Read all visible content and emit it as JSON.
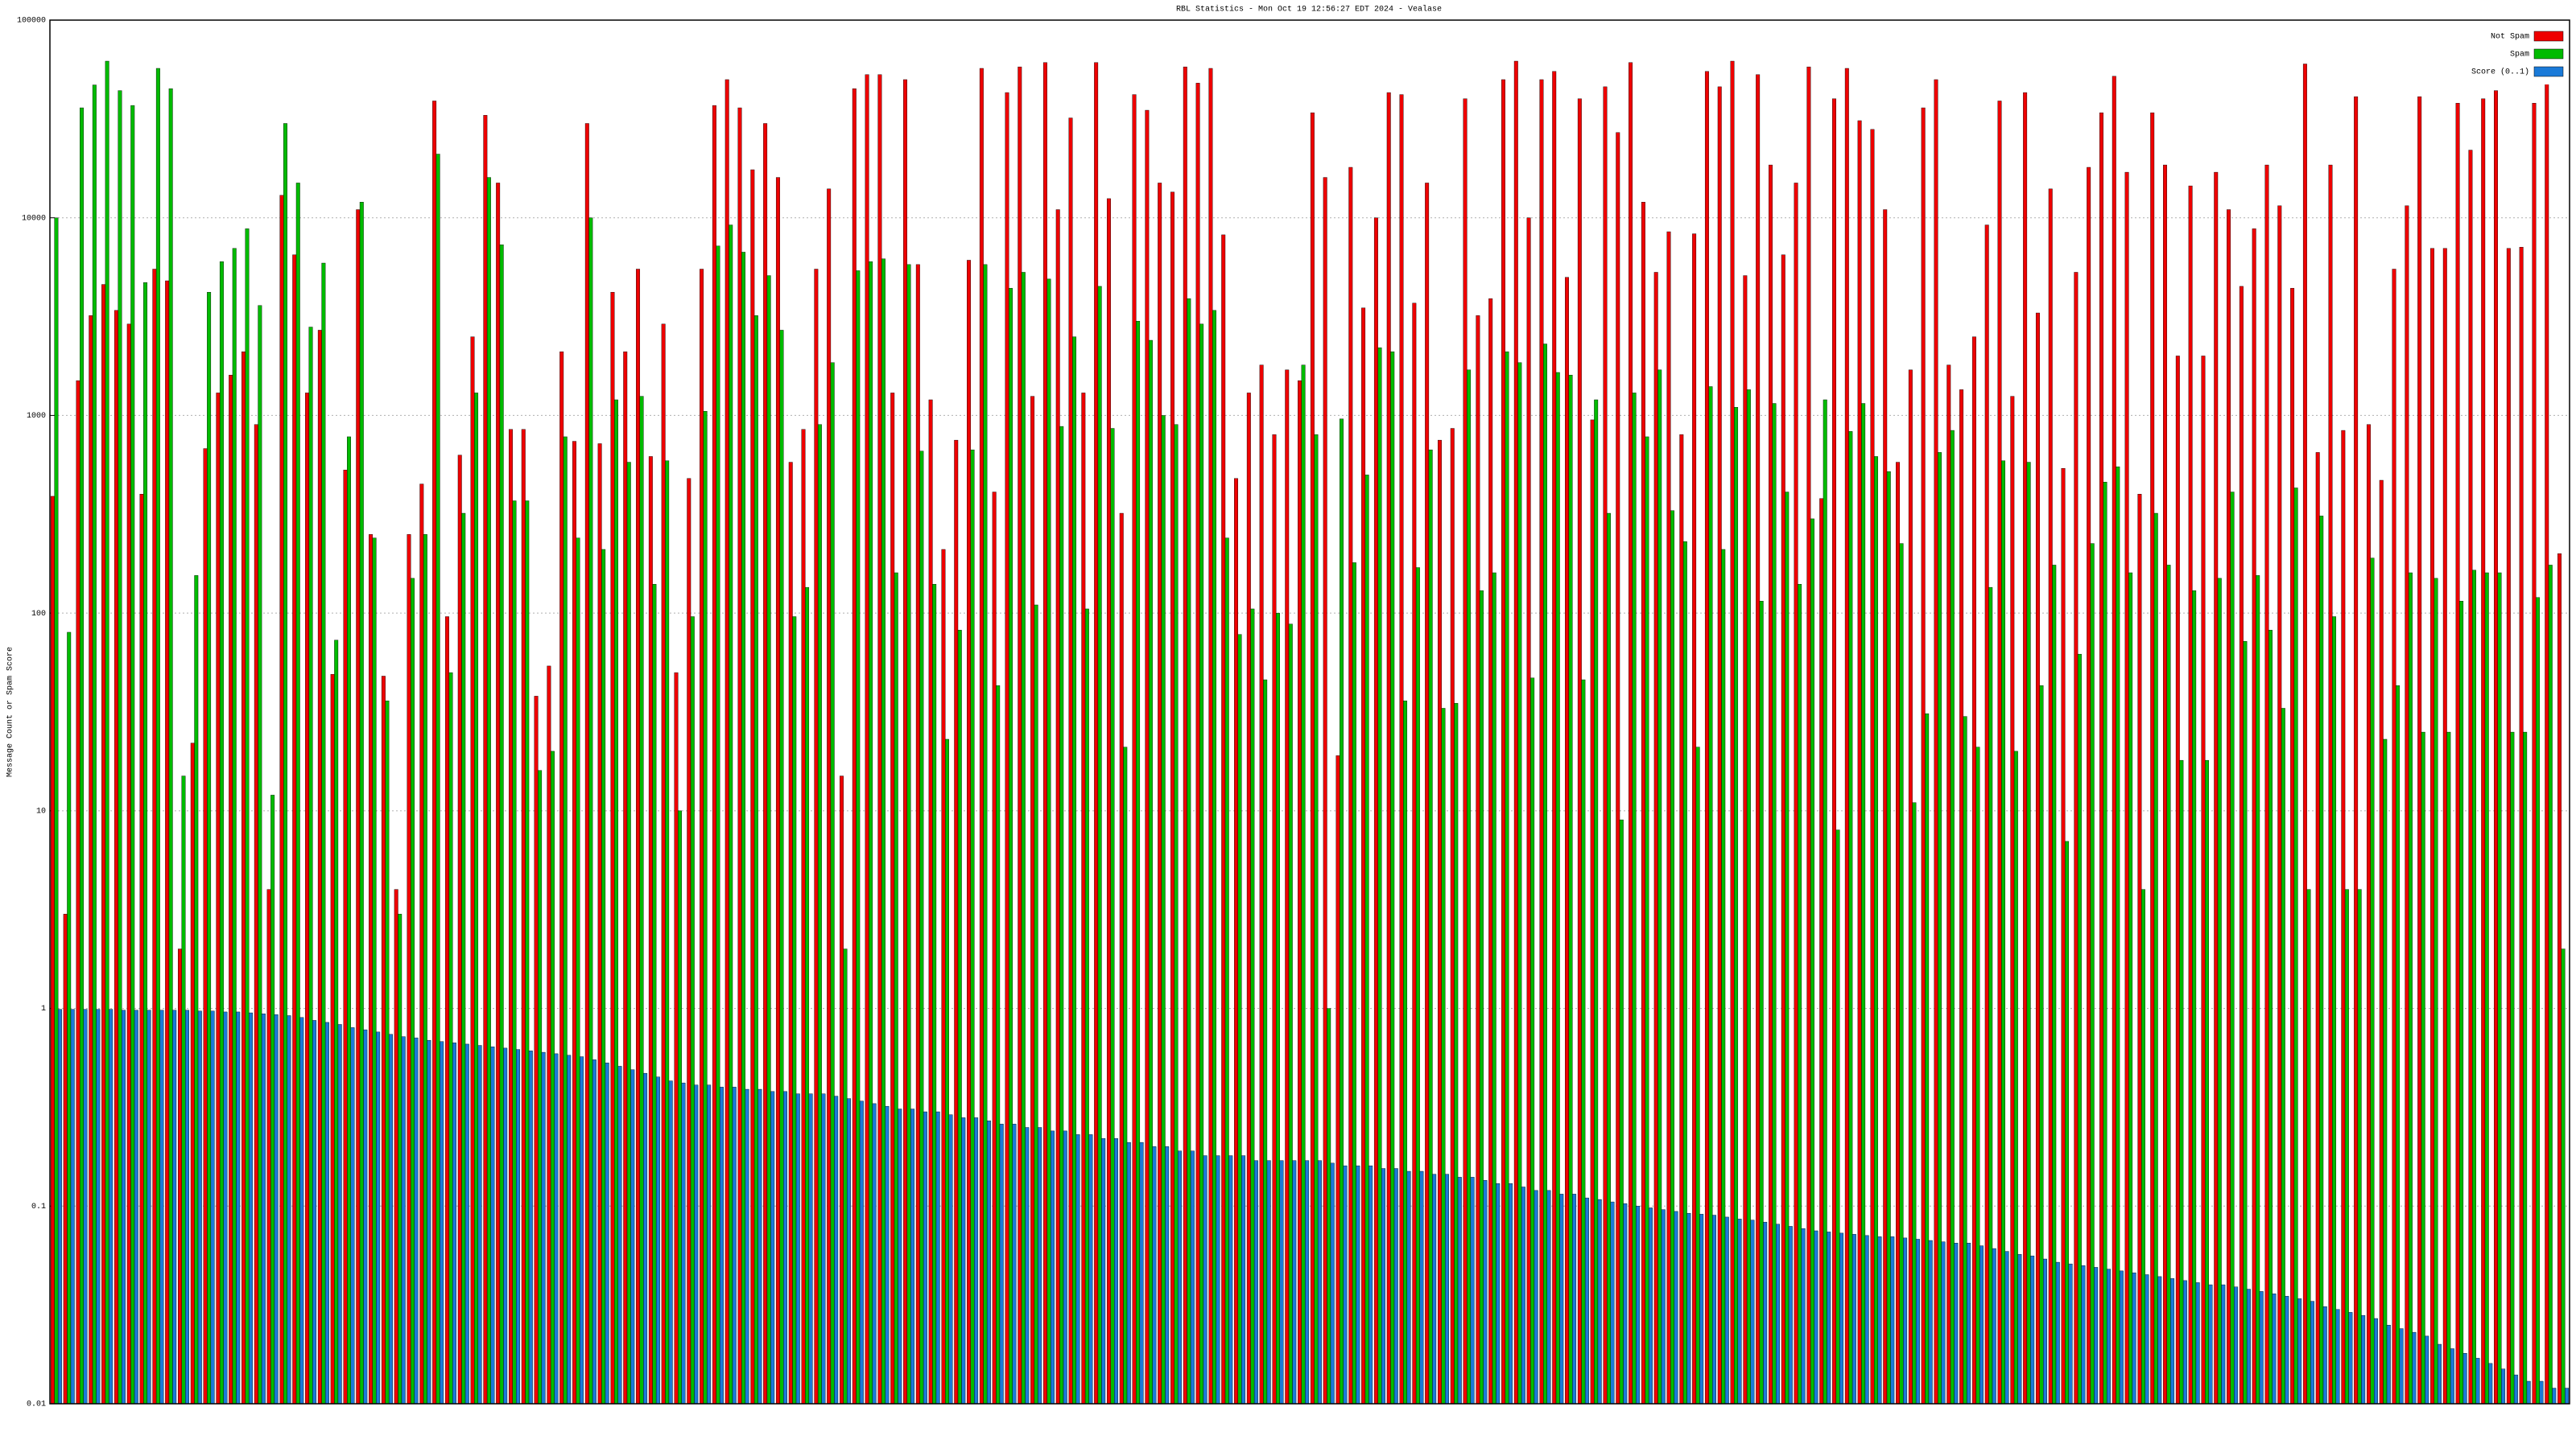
{
  "chart_data": {
    "type": "bar",
    "title": "RBL Statistics - Mon Oct 19 12:56:27 EDT 2024 - Vealase",
    "y_label": "Message Count or Spam Score",
    "log_y": true,
    "grid": true,
    "legend": "upper right",
    "ylim": [
      0.01,
      100000
    ],
    "yticks": [
      0.01,
      0.1,
      1,
      10,
      100,
      1000,
      10000,
      100000
    ],
    "categories": [
      null,
      null,
      null,
      null,
      null,
      null,
      null,
      null,
      null,
      null,
      null,
      null,
      null,
      null,
      null,
      null,
      null,
      null,
      null,
      null,
      null,
      null,
      null,
      null,
      null,
      null,
      null,
      null,
      null,
      null,
      null,
      null,
      null,
      null,
      null,
      null,
      null,
      null,
      null,
      null,
      null,
      null,
      null,
      null,
      null,
      null,
      null,
      null,
      null,
      null,
      null,
      null,
      null,
      null,
      null,
      null,
      null,
      null,
      null,
      null,
      null,
      null,
      null,
      null,
      null,
      null,
      null,
      null,
      null,
      null,
      null,
      null,
      null,
      null,
      null,
      null,
      null,
      null,
      null,
      null,
      null,
      null,
      null,
      null,
      null,
      null,
      null,
      null,
      null,
      null,
      null,
      null,
      null,
      null,
      null,
      null,
      null,
      null,
      null,
      null,
      null,
      null,
      null,
      null,
      null,
      null,
      null,
      null,
      null,
      null,
      null,
      null,
      null,
      null,
      null,
      null,
      null,
      null,
      null,
      null,
      null,
      null,
      null,
      null,
      null,
      null,
      null,
      null,
      null,
      null,
      null,
      null,
      null,
      null,
      null,
      null,
      null,
      null,
      null,
      null,
      null,
      null,
      null,
      null,
      null,
      null,
      null,
      null,
      null,
      null,
      null,
      null,
      null,
      null,
      null,
      null,
      null,
      null,
      null,
      null,
      null,
      null,
      null,
      null,
      null,
      null,
      null,
      null,
      null,
      null,
      null,
      null,
      null,
      null,
      null,
      null,
      null,
      null,
      null,
      null,
      null,
      null,
      null,
      null,
      null,
      null,
      null,
      null,
      null,
      null,
      null,
      null,
      null,
      null,
      null,
      null,
      null,
      null
    ],
    "series": [
      {
        "name": "Not Spam",
        "color": "#ee0000",
        "values": [
          390,
          3,
          1500,
          3200,
          4600,
          3400,
          2900,
          400,
          5500,
          4800,
          2,
          22,
          680,
          1300,
          1600,
          2100,
          900,
          4,
          13000,
          6500,
          1300,
          2700,
          49,
          530,
          11000,
          250,
          48,
          4,
          250,
          450,
          39000,
          96,
          630,
          2500,
          33000,
          15000,
          850,
          850,
          38,
          54,
          2100,
          740,
          30000,
          720,
          4200,
          2100,
          5500,
          620,
          2900,
          50,
          480,
          5500,
          37000,
          50000,
          36000,
          17500,
          30000,
          16000,
          580,
          850,
          5500,
          14000,
          15,
          45000,
          53000,
          53000,
          1300,
          50000,
          5800,
          1200,
          210,
          750,
          6100,
          57000,
          410,
          43000,
          58000,
          1250,
          61000,
          11000,
          32000,
          1300,
          61000,
          12500,
          320,
          42000,
          35000,
          15000,
          13500,
          58000,
          48000,
          57000,
          8200,
          480,
          1300,
          1800,
          800,
          1700,
          1500,
          34000,
          16000,
          19,
          18000,
          3500,
          10000,
          43000,
          42000,
          3700,
          15000,
          750,
          860,
          40000,
          3200,
          3900,
          50000,
          62000,
          10000,
          50000,
          55000,
          5000,
          40000,
          950,
          46000,
          27000,
          61000,
          12000,
          5300,
          8500,
          800,
          8300,
          55000,
          46000,
          62000,
          5100,
          53000,
          18500,
          6500,
          15000,
          58000,
          380,
          40000,
          57000,
          31000,
          28000,
          11000,
          580,
          1700,
          36000,
          50000,
          1800,
          1350,
          2500,
          9200,
          39000,
          1250,
          43000,
          3300,
          14000,
          540,
          5300,
          18000,
          34000,
          52000,
          17000,
          400,
          34000,
          18500,
          2000,
          14500,
          2000,
          17000,
          11000,
          4500,
          8800,
          18500,
          11500,
          4400,
          60000,
          650,
          18500,
          840,
          41000,
          900,
          470,
          5500,
          11500,
          41000,
          7000,
          7000,
          38000,
          22000,
          40000,
          44000,
          7000,
          7100,
          38000,
          48000,
          200
        ]
      },
      {
        "name": "Spam",
        "color": "#00bb00",
        "values": [
          10000,
          80,
          36000,
          47000,
          62000,
          44000,
          37000,
          4700,
          57000,
          45000,
          15,
          155,
          4200,
          6000,
          7000,
          8800,
          3600,
          12,
          30000,
          15000,
          2800,
          5900,
          73,
          780,
          12000,
          240,
          36,
          3,
          150,
          250,
          21000,
          50,
          320,
          1300,
          16000,
          7300,
          370,
          370,
          16,
          20,
          780,
          240,
          10000,
          210,
          1200,
          580,
          1250,
          140,
          590,
          10,
          96,
          1050,
          7200,
          9200,
          6700,
          3200,
          5100,
          2700,
          96,
          135,
          900,
          1850,
          2,
          5400,
          6000,
          6200,
          160,
          5800,
          660,
          140,
          23,
          82,
          670,
          5800,
          43,
          4400,
          5300,
          110,
          4900,
          880,
          2500,
          105,
          4500,
          860,
          21,
          3000,
          2400,
          1000,
          900,
          3900,
          2900,
          3400,
          240,
          78,
          105,
          46,
          100,
          88,
          1800,
          800,
          1,
          960,
          180,
          500,
          2200,
          2100,
          36,
          170,
          670,
          33,
          35,
          1700,
          130,
          160,
          2100,
          1850,
          47,
          2300,
          1650,
          1600,
          46,
          1200,
          320,
          9,
          1300,
          780,
          1700,
          330,
          230,
          21,
          1400,
          210,
          1100,
          1350,
          115,
          1150,
          410,
          140,
          300,
          1200,
          8,
          830,
          1150,
          620,
          520,
          225,
          11,
          31,
          650,
          840,
          30,
          21,
          135,
          590,
          20,
          580,
          43,
          175,
          7,
          62,
          225,
          460,
          550,
          160,
          4,
          320,
          175,
          18,
          130,
          18,
          150,
          410,
          72,
          155,
          82,
          33,
          430,
          4,
          310,
          96,
          4,
          4,
          190,
          23,
          43,
          160,
          25,
          150,
          25,
          115,
          165,
          160,
          160,
          25,
          25,
          120,
          175,
          2
        ]
      },
      {
        "name": "Score (0..1)",
        "color": "#1a7ad8",
        "values": [
          0.99,
          0.99,
          0.99,
          0.99,
          0.99,
          0.98,
          0.98,
          0.98,
          0.98,
          0.98,
          0.98,
          0.97,
          0.97,
          0.96,
          0.96,
          0.95,
          0.94,
          0.93,
          0.92,
          0.9,
          0.87,
          0.85,
          0.83,
          0.8,
          0.78,
          0.76,
          0.74,
          0.72,
          0.71,
          0.69,
          0.68,
          0.67,
          0.66,
          0.65,
          0.64,
          0.63,
          0.62,
          0.61,
          0.6,
          0.59,
          0.58,
          0.57,
          0.55,
          0.53,
          0.51,
          0.49,
          0.47,
          0.45,
          0.43,
          0.42,
          0.41,
          0.41,
          0.4,
          0.4,
          0.39,
          0.39,
          0.38,
          0.38,
          0.37,
          0.37,
          0.37,
          0.36,
          0.35,
          0.34,
          0.33,
          0.32,
          0.31,
          0.31,
          0.3,
          0.3,
          0.29,
          0.28,
          0.28,
          0.27,
          0.26,
          0.26,
          0.25,
          0.25,
          0.24,
          0.24,
          0.23,
          0.23,
          0.22,
          0.22,
          0.21,
          0.21,
          0.2,
          0.2,
          0.19,
          0.19,
          0.18,
          0.18,
          0.18,
          0.18,
          0.17,
          0.17,
          0.17,
          0.17,
          0.17,
          0.17,
          0.165,
          0.16,
          0.16,
          0.16,
          0.155,
          0.155,
          0.15,
          0.15,
          0.145,
          0.145,
          0.14,
          0.14,
          0.135,
          0.13,
          0.13,
          0.125,
          0.12,
          0.12,
          0.115,
          0.115,
          0.11,
          0.108,
          0.105,
          0.103,
          0.1,
          0.098,
          0.096,
          0.094,
          0.092,
          0.091,
          0.09,
          0.088,
          0.086,
          0.085,
          0.083,
          0.081,
          0.079,
          0.077,
          0.075,
          0.074,
          0.073,
          0.072,
          0.071,
          0.07,
          0.07,
          0.069,
          0.068,
          0.067,
          0.066,
          0.065,
          0.065,
          0.063,
          0.061,
          0.059,
          0.057,
          0.056,
          0.054,
          0.052,
          0.051,
          0.05,
          0.049,
          0.048,
          0.047,
          0.046,
          0.045,
          0.044,
          0.043,
          0.042,
          0.041,
          0.04,
          0.04,
          0.039,
          0.038,
          0.037,
          0.036,
          0.035,
          0.034,
          0.033,
          0.031,
          0.03,
          0.029,
          0.028,
          0.027,
          0.025,
          0.024,
          0.023,
          0.022,
          0.02,
          0.019,
          0.018,
          0.017,
          0.016,
          0.015,
          0.014,
          0.013,
          0.013,
          0.012,
          0.012
        ]
      }
    ]
  }
}
